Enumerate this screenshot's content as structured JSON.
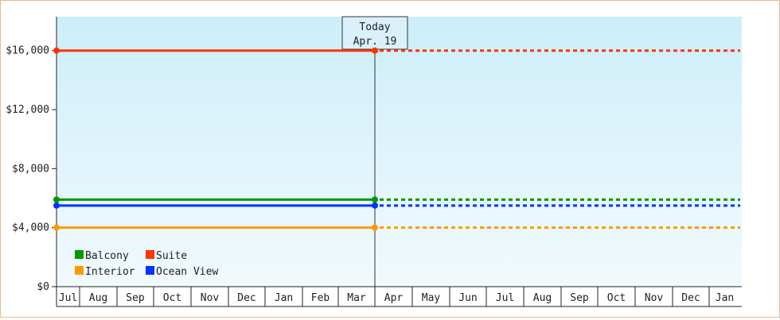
{
  "chart_data": {
    "type": "line",
    "y_ticks": [
      "$0",
      "$4,000",
      "$8,000",
      "$12,000",
      "$16,000"
    ],
    "y_tick_values": [
      0,
      4000,
      8000,
      12000,
      16000
    ],
    "ylim": [
      0,
      18300
    ],
    "x_ticks": [
      "Jul",
      "Aug",
      "Sep",
      "Oct",
      "Nov",
      "Dec",
      "Jan",
      "Feb",
      "Mar",
      "Apr",
      "May",
      "Jun",
      "Jul",
      "Aug",
      "Sep",
      "Oct",
      "Nov",
      "Dec",
      "Jan"
    ],
    "today_marker": {
      "label_line1": "Today",
      "label_line2": "Apr. 19",
      "x": "Apr"
    },
    "series": [
      {
        "name": "Suite",
        "color": "#ff3300",
        "value": 16000,
        "history_from": "Jul",
        "history_to": "Apr",
        "projection_to": "Jan"
      },
      {
        "name": "Balcony",
        "color": "#009900",
        "value": 5900,
        "history_from": "Jul",
        "history_to": "Apr",
        "projection_to": "Jan"
      },
      {
        "name": "Ocean View",
        "color": "#0033ff",
        "value": 5500,
        "history_from": "Jul",
        "history_to": "Apr",
        "projection_to": "Jan"
      },
      {
        "name": "Interior",
        "color": "#ff9900",
        "value": 4000,
        "history_from": "Jul",
        "history_to": "Apr",
        "projection_to": "Jan"
      }
    ],
    "legend": {
      "placement": "bottom-left",
      "rows": [
        [
          "Balcony",
          "Suite"
        ],
        [
          "Interior",
          "Ocean View"
        ]
      ]
    },
    "background_gradient": [
      "#cdeefa",
      "#f1fafd"
    ]
  }
}
